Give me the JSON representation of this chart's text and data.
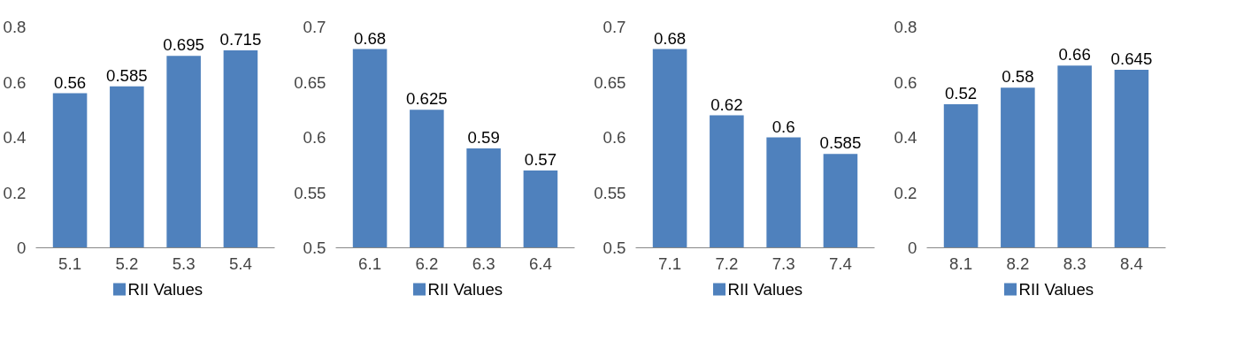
{
  "chart_data": [
    {
      "type": "bar",
      "categories": [
        "5.1",
        "5.2",
        "5.3",
        "5.4"
      ],
      "series": [
        {
          "name": "RII Values",
          "color": "#4f81bd",
          "values": [
            0.56,
            0.585,
            0.695,
            0.715
          ]
        }
      ],
      "ylim": [
        0,
        0.8
      ],
      "yticks": [
        0,
        0.2,
        0.4,
        0.6,
        0.8
      ],
      "data_labels": true,
      "legend": "bottom"
    },
    {
      "type": "bar",
      "categories": [
        "6.1",
        "6.2",
        "6.3",
        "6.4"
      ],
      "series": [
        {
          "name": "RII Values",
          "color": "#4f81bd",
          "values": [
            0.68,
            0.625,
            0.59,
            0.57
          ]
        }
      ],
      "ylim": [
        0.5,
        0.7
      ],
      "yticks": [
        0.5,
        0.55,
        0.6,
        0.65,
        0.7
      ],
      "data_labels": true,
      "legend": "bottom"
    },
    {
      "type": "bar",
      "categories": [
        "7.1",
        "7.2",
        "7.3",
        "7.4"
      ],
      "series": [
        {
          "name": "RII Values",
          "color": "#4f81bd",
          "values": [
            0.68,
            0.62,
            0.6,
            0.585
          ]
        }
      ],
      "ylim": [
        0.5,
        0.7
      ],
      "yticks": [
        0.5,
        0.55,
        0.6,
        0.65,
        0.7
      ],
      "data_labels": true,
      "legend": "bottom"
    },
    {
      "type": "bar",
      "categories": [
        "8.1",
        "8.2",
        "8.3",
        "8.4"
      ],
      "series": [
        {
          "name": "RII Values",
          "color": "#4f81bd",
          "values": [
            0.52,
            0.58,
            0.66,
            0.645
          ]
        }
      ],
      "ylim": [
        0,
        0.8
      ],
      "yticks": [
        0,
        0.2,
        0.4,
        0.6,
        0.8
      ],
      "data_labels": true,
      "legend": "bottom"
    }
  ]
}
